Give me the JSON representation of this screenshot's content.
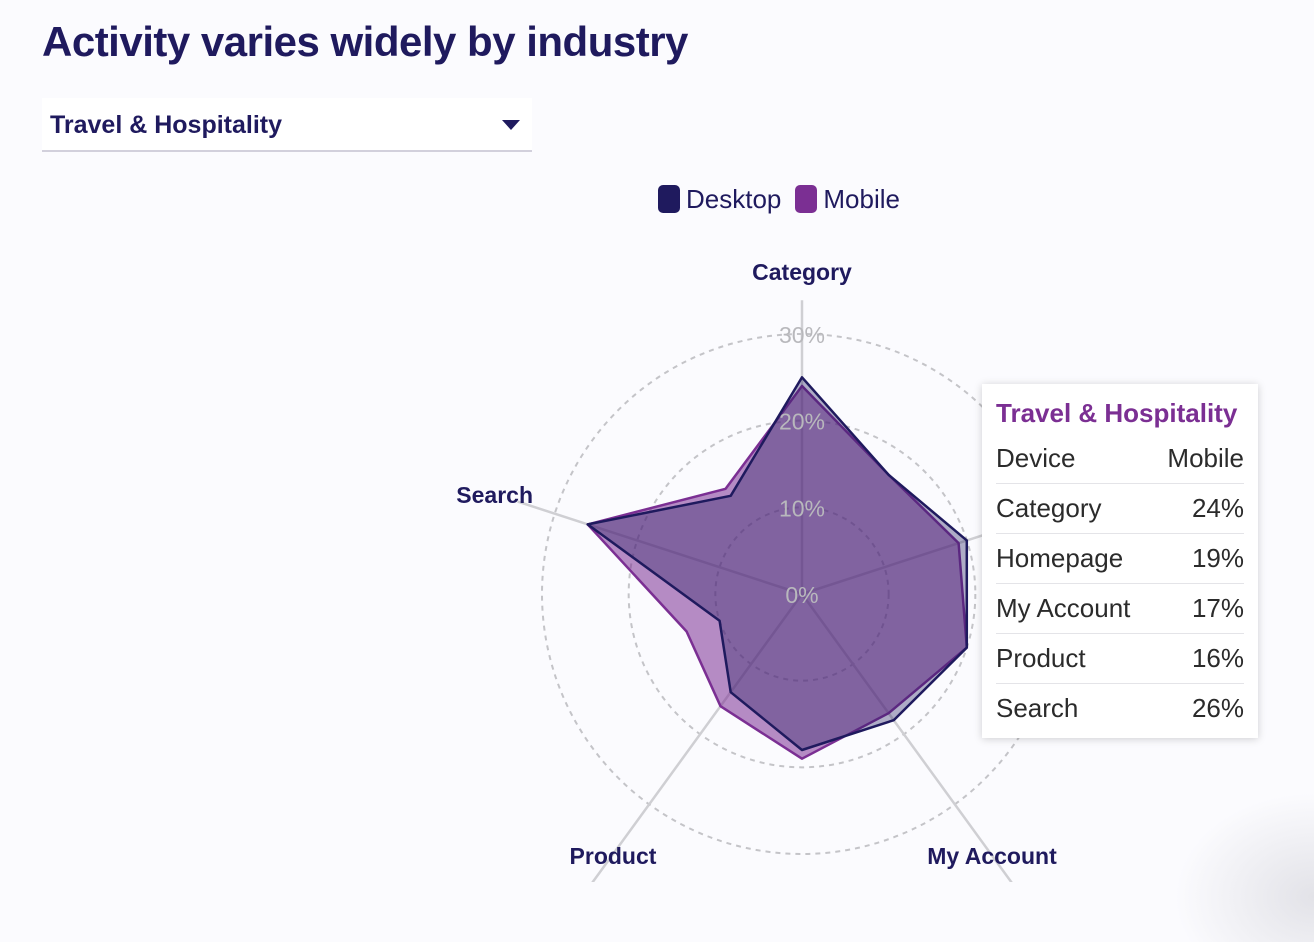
{
  "title": "Activity varies widely by industry",
  "industry_select": {
    "selected": "Travel & Hospitality"
  },
  "legend": [
    {
      "label": "Desktop",
      "color": "#1f1a5e"
    },
    {
      "label": "Mobile",
      "color": "#7b2f93"
    }
  ],
  "chart_data": {
    "type": "radar",
    "axes": [
      "Category",
      "Homepage",
      "My Account",
      "Product",
      "Search"
    ],
    "rlim": [
      0,
      30
    ],
    "ticks": [
      "0%",
      "10%",
      "20%",
      "30%"
    ],
    "tick_values": [
      0,
      10,
      20,
      30
    ],
    "grid": true,
    "legend_position": "top",
    "series": [
      {
        "name": "Desktop",
        "color": "#1f1a5e",
        "values": [
          25,
          20,
          18,
          14,
          26
        ],
        "mid_values": [
          17,
          20,
          18,
          10,
          14
        ]
      },
      {
        "name": "Mobile",
        "color": "#7b2f93",
        "values": [
          24,
          19,
          17,
          16,
          26
        ],
        "mid_values": [
          17,
          20,
          19,
          14,
          15
        ]
      }
    ]
  },
  "tooltip": {
    "title": "Travel & Hospitality",
    "header": {
      "col1": "Device",
      "col2": "Mobile"
    },
    "rows": [
      {
        "label": "Category",
        "value": "24%"
      },
      {
        "label": "Homepage",
        "value": "19%"
      },
      {
        "label": "My Account",
        "value": "17%"
      },
      {
        "label": "Product",
        "value": "16%"
      },
      {
        "label": "Search",
        "value": "26%"
      }
    ]
  }
}
